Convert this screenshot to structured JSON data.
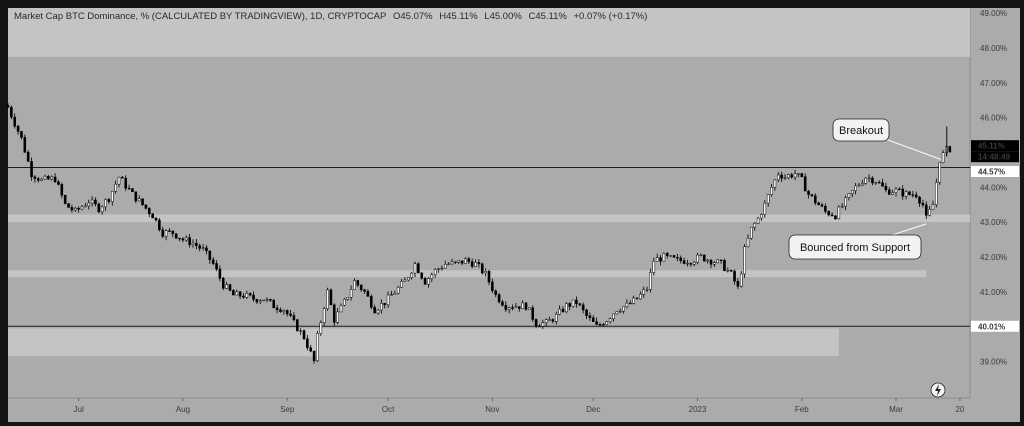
{
  "legend": {
    "symbol": "Market Cap BTC Dominance, % (CALCULATED BY TRADINGVIEW), 1D, CRYPTOCAP",
    "open": "O45.07%",
    "high": "H45.11%",
    "low": "L45.00%",
    "close": "C45.11%",
    "change": "+0.07% (+0.17%)"
  },
  "price_labels": {
    "last_price": "45.11%",
    "countdown": "14:48:49",
    "resistance": "44.57%",
    "support": "40.01%"
  },
  "annotations": {
    "breakout": "Breakout",
    "bounce": "Bounced from Support"
  },
  "colors": {
    "plot_bg": "#ababab",
    "zone": "#c4c4c4",
    "up_candle": "#ffffff",
    "down_candle": "#000000",
    "frame": "#141414"
  },
  "chart_data": {
    "type": "candlestick",
    "y_unit": "%",
    "ylim": [
      37.95,
      49.15
    ],
    "y_ticks": [
      "38.00%",
      "39.00%",
      "40.00%",
      "41.00%",
      "42.00%",
      "43.00%",
      "44.00%",
      "45.00%",
      "46.00%",
      "47.00%",
      "48.00%",
      "49.00%"
    ],
    "y_tick_values": [
      38,
      39,
      40,
      41,
      42,
      43,
      44,
      45,
      46,
      47,
      48,
      49
    ],
    "x_ticks": [
      "Jul",
      "Aug",
      "Sep",
      "Oct",
      "Nov",
      "Dec",
      "2023",
      "Feb",
      "Mar",
      "20"
    ],
    "x_tick_dates": [
      "2022-07-01",
      "2022-08-01",
      "2022-09-01",
      "2022-10-01",
      "2022-11-01",
      "2022-12-01",
      "2023-01-01",
      "2023-02-01",
      "2023-03-01",
      "2023-03-20"
    ],
    "x_range": [
      "2022-06-10",
      "2023-03-23"
    ],
    "horizontal_lines": [
      {
        "label": "44.57%",
        "value": 44.57
      },
      {
        "label": "40.01%",
        "value": 40.01
      }
    ],
    "zones": [
      {
        "y1": 47.75,
        "y2": 49.15,
        "x1": "2022-06-10",
        "x2": "2023-03-23"
      },
      {
        "y1": 43.0,
        "y2": 43.22,
        "x1": "2022-06-10",
        "x2": "2023-03-23"
      },
      {
        "y1": 41.42,
        "y2": 41.62,
        "x1": "2022-06-10",
        "x2": "2023-03-10"
      },
      {
        "y1": 39.15,
        "y2": 39.95,
        "x1": "2022-06-10",
        "x2": "2023-02-12"
      }
    ],
    "price_path": [
      [
        "2022-06-10",
        46.3
      ],
      [
        "2022-06-14",
        45.4
      ],
      [
        "2022-06-17",
        44.4
      ],
      [
        "2022-06-20",
        44.2
      ],
      [
        "2022-06-24",
        44.25
      ],
      [
        "2022-06-27",
        43.5
      ],
      [
        "2022-06-30",
        43.3
      ],
      [
        "2022-07-04",
        43.6
      ],
      [
        "2022-07-07",
        43.4
      ],
      [
        "2022-07-10",
        43.7
      ],
      [
        "2022-07-13",
        44.3
      ],
      [
        "2022-07-17",
        43.8
      ],
      [
        "2022-07-20",
        43.5
      ],
      [
        "2022-07-23",
        43.2
      ],
      [
        "2022-07-26",
        42.7
      ],
      [
        "2022-07-29",
        42.7
      ],
      [
        "2022-08-01",
        42.5
      ],
      [
        "2022-08-04",
        42.4
      ],
      [
        "2022-08-07",
        42.2
      ],
      [
        "2022-08-10",
        41.8
      ],
      [
        "2022-08-13",
        41.2
      ],
      [
        "2022-08-16",
        40.9
      ],
      [
        "2022-08-19",
        40.9
      ],
      [
        "2022-08-22",
        40.8
      ],
      [
        "2022-08-25",
        40.8
      ],
      [
        "2022-08-28",
        40.6
      ],
      [
        "2022-08-31",
        40.5
      ],
      [
        "2022-09-03",
        40.1
      ],
      [
        "2022-09-06",
        39.7
      ],
      [
        "2022-09-09",
        39.0
      ],
      [
        "2022-09-10",
        39.7
      ],
      [
        "2022-09-12",
        40.6
      ],
      [
        "2022-09-13",
        41.0
      ],
      [
        "2022-09-15",
        40.2
      ],
      [
        "2022-09-18",
        40.7
      ],
      [
        "2022-09-21",
        41.3
      ],
      [
        "2022-09-24",
        41.0
      ],
      [
        "2022-09-27",
        40.5
      ],
      [
        "2022-09-30",
        40.7
      ],
      [
        "2022-10-03",
        41.0
      ],
      [
        "2022-10-06",
        41.3
      ],
      [
        "2022-10-09",
        41.8
      ],
      [
        "2022-10-12",
        41.3
      ],
      [
        "2022-10-15",
        41.6
      ],
      [
        "2022-10-18",
        41.8
      ],
      [
        "2022-10-21",
        41.8
      ],
      [
        "2022-10-24",
        41.9
      ],
      [
        "2022-10-27",
        41.8
      ],
      [
        "2022-10-30",
        41.5
      ],
      [
        "2022-11-02",
        40.9
      ],
      [
        "2022-11-05",
        40.6
      ],
      [
        "2022-11-08",
        40.6
      ],
      [
        "2022-11-11",
        40.6
      ],
      [
        "2022-11-14",
        40.1
      ],
      [
        "2022-11-17",
        40.1
      ],
      [
        "2022-11-20",
        40.3
      ],
      [
        "2022-11-23",
        40.6
      ],
      [
        "2022-11-26",
        40.7
      ],
      [
        "2022-11-29",
        40.3
      ],
      [
        "2022-12-02",
        40.0
      ],
      [
        "2022-12-05",
        40.2
      ],
      [
        "2022-12-08",
        40.5
      ],
      [
        "2022-12-11",
        40.6
      ],
      [
        "2022-12-14",
        40.8
      ],
      [
        "2022-12-17",
        41.1
      ],
      [
        "2022-12-19",
        41.9
      ],
      [
        "2022-12-22",
        42.0
      ],
      [
        "2022-12-26",
        41.9
      ],
      [
        "2022-12-30",
        41.9
      ],
      [
        "2023-01-02",
        42.0
      ],
      [
        "2023-01-05",
        41.9
      ],
      [
        "2023-01-08",
        41.8
      ],
      [
        "2023-01-11",
        41.5
      ],
      [
        "2023-01-13",
        41.1
      ],
      [
        "2023-01-14",
        41.6
      ],
      [
        "2023-01-15",
        42.2
      ],
      [
        "2023-01-17",
        42.8
      ],
      [
        "2023-01-19",
        43.1
      ],
      [
        "2023-01-21",
        43.5
      ],
      [
        "2023-01-23",
        44.0
      ],
      [
        "2023-01-25",
        44.4
      ],
      [
        "2023-01-27",
        44.3
      ],
      [
        "2023-01-30",
        44.4
      ],
      [
        "2023-02-01",
        44.2
      ],
      [
        "2023-02-03",
        43.8
      ],
      [
        "2023-02-05",
        43.6
      ],
      [
        "2023-02-08",
        43.3
      ],
      [
        "2023-02-11",
        43.2
      ],
      [
        "2023-02-14",
        43.6
      ],
      [
        "2023-02-17",
        44.0
      ],
      [
        "2023-02-20",
        44.3
      ],
      [
        "2023-02-23",
        44.2
      ],
      [
        "2023-02-26",
        43.9
      ],
      [
        "2023-03-01",
        43.9
      ],
      [
        "2023-03-04",
        43.8
      ],
      [
        "2023-03-07",
        43.8
      ],
      [
        "2023-03-09",
        43.5
      ],
      [
        "2023-03-10",
        43.1
      ],
      [
        "2023-03-12",
        43.5
      ],
      [
        "2023-03-14",
        44.8
      ],
      [
        "2023-03-16",
        45.07
      ],
      [
        "2023-03-17",
        45.11
      ]
    ]
  }
}
